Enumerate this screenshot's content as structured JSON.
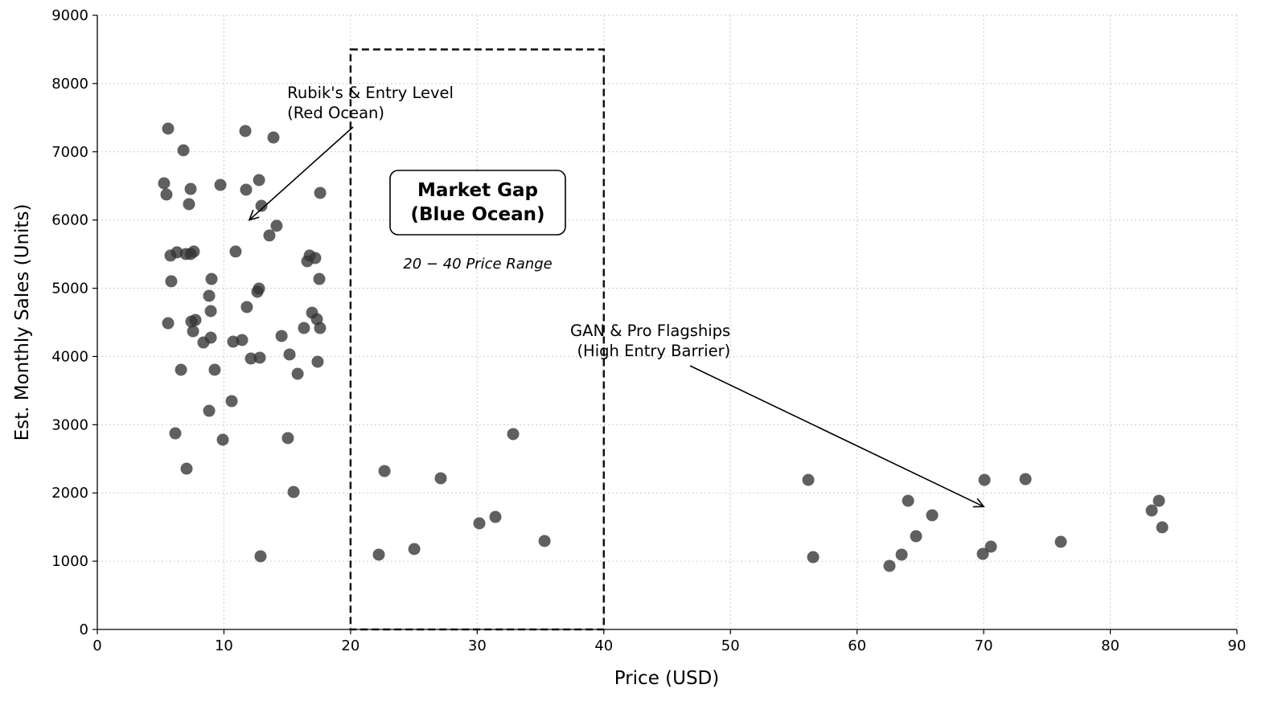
{
  "chart_data": {
    "type": "scatter",
    "title": "",
    "xlabel": "Price (USD)",
    "ylabel": "Est. Monthly Sales (Units)",
    "xlim": [
      0,
      90
    ],
    "ylim": [
      0,
      9000
    ],
    "xticks": [
      0,
      10,
      20,
      30,
      40,
      50,
      60,
      70,
      80,
      90
    ],
    "yticks": [
      0,
      1000,
      2000,
      3000,
      4000,
      5000,
      6000,
      7000,
      8000,
      9000
    ],
    "grid": true,
    "point_color": "#333333",
    "points": [
      [
        5.59,
        7339
      ],
      [
        6.8,
        7021
      ],
      [
        5.27,
        6538
      ],
      [
        5.46,
        6373
      ],
      [
        7.37,
        6455
      ],
      [
        7.24,
        6232
      ],
      [
        9.72,
        6514
      ],
      [
        11.69,
        7304
      ],
      [
        13.91,
        7209
      ],
      [
        12.77,
        6585
      ],
      [
        11.75,
        6444
      ],
      [
        12.96,
        6208
      ],
      [
        17.6,
        6397
      ],
      [
        14.16,
        5915
      ],
      [
        13.59,
        5773
      ],
      [
        5.78,
        5479
      ],
      [
        6.29,
        5526
      ],
      [
        6.99,
        5502
      ],
      [
        7.37,
        5502
      ],
      [
        7.62,
        5538
      ],
      [
        5.84,
        5102
      ],
      [
        10.92,
        5538
      ],
      [
        16.77,
        5479
      ],
      [
        16.58,
        5396
      ],
      [
        17.21,
        5443
      ],
      [
        9.02,
        5136
      ],
      [
        8.83,
        4889
      ],
      [
        17.53,
        5136
      ],
      [
        12.77,
        4995
      ],
      [
        12.64,
        4948
      ],
      [
        5.59,
        4488
      ],
      [
        8.96,
        4665
      ],
      [
        7.43,
        4512
      ],
      [
        7.75,
        4535
      ],
      [
        7.56,
        4370
      ],
      [
        11.81,
        4724
      ],
      [
        16.96,
        4641
      ],
      [
        17.34,
        4547
      ],
      [
        16.32,
        4417
      ],
      [
        17.59,
        4417
      ],
      [
        14.55,
        4300
      ],
      [
        8.96,
        4276
      ],
      [
        8.38,
        4205
      ],
      [
        10.73,
        4217
      ],
      [
        11.43,
        4241
      ],
      [
        6.61,
        3805
      ],
      [
        9.27,
        3805
      ],
      [
        12.13,
        3970
      ],
      [
        12.83,
        3982
      ],
      [
        15.18,
        4029
      ],
      [
        17.4,
        3923
      ],
      [
        15.82,
        3746
      ],
      [
        10.61,
        3346
      ],
      [
        8.83,
        3204
      ],
      [
        6.16,
        2874
      ],
      [
        9.91,
        2780
      ],
      [
        15.05,
        2804
      ],
      [
        7.05,
        2356
      ],
      [
        15.5,
        2014
      ],
      [
        12.89,
        1072
      ],
      [
        22.23,
        1096
      ],
      [
        22.68,
        2321
      ],
      [
        25.03,
        1178
      ],
      [
        27.12,
        2215
      ],
      [
        30.17,
        1555
      ],
      [
        31.44,
        1649
      ],
      [
        32.84,
        2863
      ],
      [
        35.32,
        1296
      ],
      [
        56.15,
        2191
      ],
      [
        56.53,
        1060
      ],
      [
        62.56,
        931
      ],
      [
        63.52,
        1096
      ],
      [
        64.03,
        1885
      ],
      [
        64.66,
        1366
      ],
      [
        65.93,
        1673
      ],
      [
        69.93,
        1107
      ],
      [
        70.06,
        2191
      ],
      [
        70.57,
        1213
      ],
      [
        73.3,
        2203
      ],
      [
        76.09,
        1284
      ],
      [
        83.27,
        1743
      ],
      [
        83.84,
        1885
      ],
      [
        84.1,
        1496
      ]
    ],
    "gap_region": {
      "x": [
        20,
        40
      ],
      "y": [
        0,
        8500
      ],
      "style": "dashed"
    },
    "annotations": [
      {
        "lines": [
          "Rubik's & Entry Level",
          "(Red Ocean)"
        ],
        "text_at": [
          15,
          7500
        ],
        "arrow_to": [
          12,
          6000
        ]
      },
      {
        "lines": [
          "GAN & Pro Flagships",
          " (High Entry Barrier)"
        ],
        "text_at": [
          46,
          3950
        ],
        "arrow_to": [
          70,
          1800
        ]
      }
    ],
    "gap_label": [
      "Market Gap",
      "(Blue Ocean)"
    ],
    "gap_sublabel": "20 − 40 Price Range"
  }
}
